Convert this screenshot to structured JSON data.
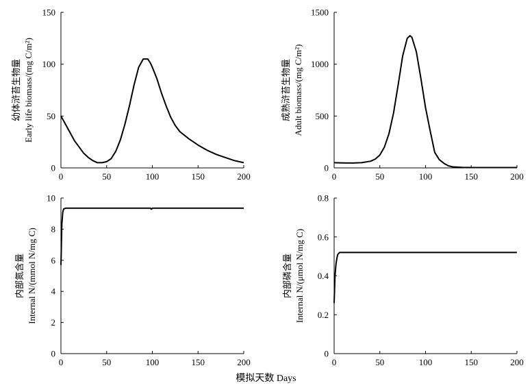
{
  "figure": {
    "shared_xlabel": "模拟天数 Days"
  },
  "chart_data": [
    {
      "type": "line",
      "ylabel_cn": "幼体浒苔生物量",
      "ylabel_en": "Early life biomass/(mg C/m²)",
      "xlim": [
        0,
        200
      ],
      "ylim": [
        0,
        150
      ],
      "xticks": [
        0,
        50,
        100,
        150,
        200
      ],
      "yticks": [
        0,
        50,
        100,
        150
      ],
      "series": [
        {
          "x": [
            0,
            5,
            10,
            15,
            20,
            25,
            30,
            35,
            40,
            45,
            50,
            55,
            60,
            65,
            70,
            75,
            80,
            85,
            90,
            95,
            98,
            100,
            105,
            110,
            115,
            120,
            125,
            130,
            140,
            150,
            160,
            170,
            180,
            190,
            200
          ],
          "y": [
            50,
            42,
            34,
            26,
            20,
            14,
            10,
            7,
            5,
            5,
            6,
            9,
            16,
            27,
            42,
            60,
            80,
            97,
            105,
            105,
            101,
            97,
            86,
            72,
            60,
            49,
            41,
            35,
            28,
            22,
            17,
            13,
            10,
            7,
            5
          ]
        }
      ]
    },
    {
      "type": "line",
      "ylabel_cn": "成熟浒苔生物量",
      "ylabel_en": "Adult biomass/(mg C/m²)",
      "xlim": [
        0,
        200
      ],
      "ylim": [
        0,
        1500
      ],
      "xticks": [
        0,
        50,
        100,
        150,
        200
      ],
      "yticks": [
        0,
        500,
        1000,
        1500
      ],
      "series": [
        {
          "x": [
            0,
            10,
            20,
            30,
            40,
            45,
            50,
            55,
            60,
            65,
            70,
            75,
            80,
            83,
            85,
            90,
            95,
            100,
            105,
            110,
            115,
            120,
            125,
            130,
            140,
            150,
            200
          ],
          "y": [
            50,
            48,
            47,
            50,
            65,
            85,
            125,
            200,
            330,
            530,
            800,
            1080,
            1250,
            1275,
            1260,
            1120,
            860,
            580,
            360,
            150,
            80,
            45,
            20,
            10,
            5,
            3,
            3
          ]
        }
      ]
    },
    {
      "type": "line",
      "ylabel_cn": "内部氮含量",
      "ylabel_en": "Internal N/(mmol N/mg C)",
      "xlim": [
        0,
        200
      ],
      "ylim": [
        0,
        10
      ],
      "xticks": [
        0,
        50,
        100,
        150,
        200
      ],
      "yticks": [
        0,
        2,
        4,
        6,
        8,
        10
      ],
      "series": [
        {
          "x": [
            0,
            0.5,
            1,
            2,
            3,
            5,
            8,
            50,
            98,
            99,
            100,
            150,
            200
          ],
          "y": [
            5.7,
            7.0,
            8.3,
            9.1,
            9.3,
            9.35,
            9.35,
            9.35,
            9.35,
            9.28,
            9.35,
            9.35,
            9.35
          ]
        }
      ]
    },
    {
      "type": "line",
      "ylabel_cn": "内部磷含量",
      "ylabel_en": "Internal N/(μmol N/mg C)",
      "xlim": [
        0,
        200
      ],
      "ylim": [
        0,
        0.8
      ],
      "xticks": [
        0,
        50,
        100,
        150,
        200
      ],
      "yticks": [
        0,
        0.2,
        0.4,
        0.6,
        0.8
      ],
      "series": [
        {
          "x": [
            0,
            1,
            2,
            3,
            4,
            6,
            8,
            50,
            100,
            150,
            200
          ],
          "y": [
            0.26,
            0.4,
            0.46,
            0.49,
            0.51,
            0.52,
            0.52,
            0.52,
            0.52,
            0.52,
            0.52
          ]
        }
      ]
    }
  ]
}
